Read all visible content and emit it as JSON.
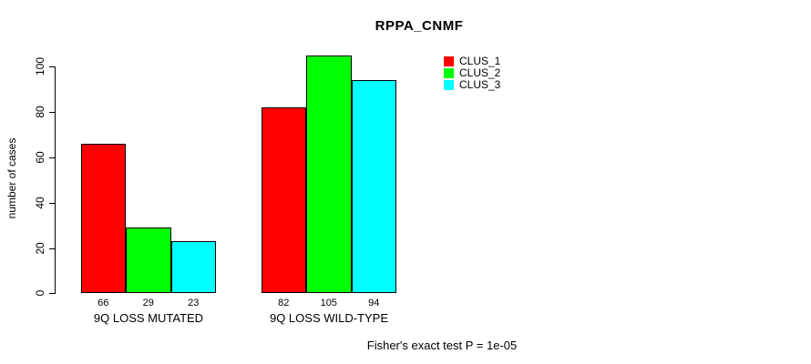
{
  "chart_data": {
    "type": "bar",
    "title": "RPPA_CNMF",
    "xlabel": "",
    "ylabel": "number of cases",
    "categories": [
      "9Q LOSS MUTATED",
      "9Q LOSS WILD-TYPE"
    ],
    "series": [
      {
        "name": "CLUS_1",
        "color": "#ff0000",
        "values": [
          66,
          82
        ]
      },
      {
        "name": "CLUS_2",
        "color": "#00ff00",
        "values": [
          29,
          105
        ]
      },
      {
        "name": "CLUS_3",
        "color": "#00ffff",
        "values": [
          23,
          94
        ]
      }
    ],
    "bar_value_labels": [
      [
        66,
        29,
        23
      ],
      [
        82,
        105,
        94
      ]
    ],
    "y_ticks": [
      0,
      20,
      40,
      60,
      80,
      100
    ],
    "ylim": [
      0,
      105
    ],
    "grid": false,
    "legend_position": "top-right-inside",
    "bar_border_color": "#000000",
    "background_color": "#ffffff",
    "annotation": "Fisher's exact test P = 1e-05"
  }
}
